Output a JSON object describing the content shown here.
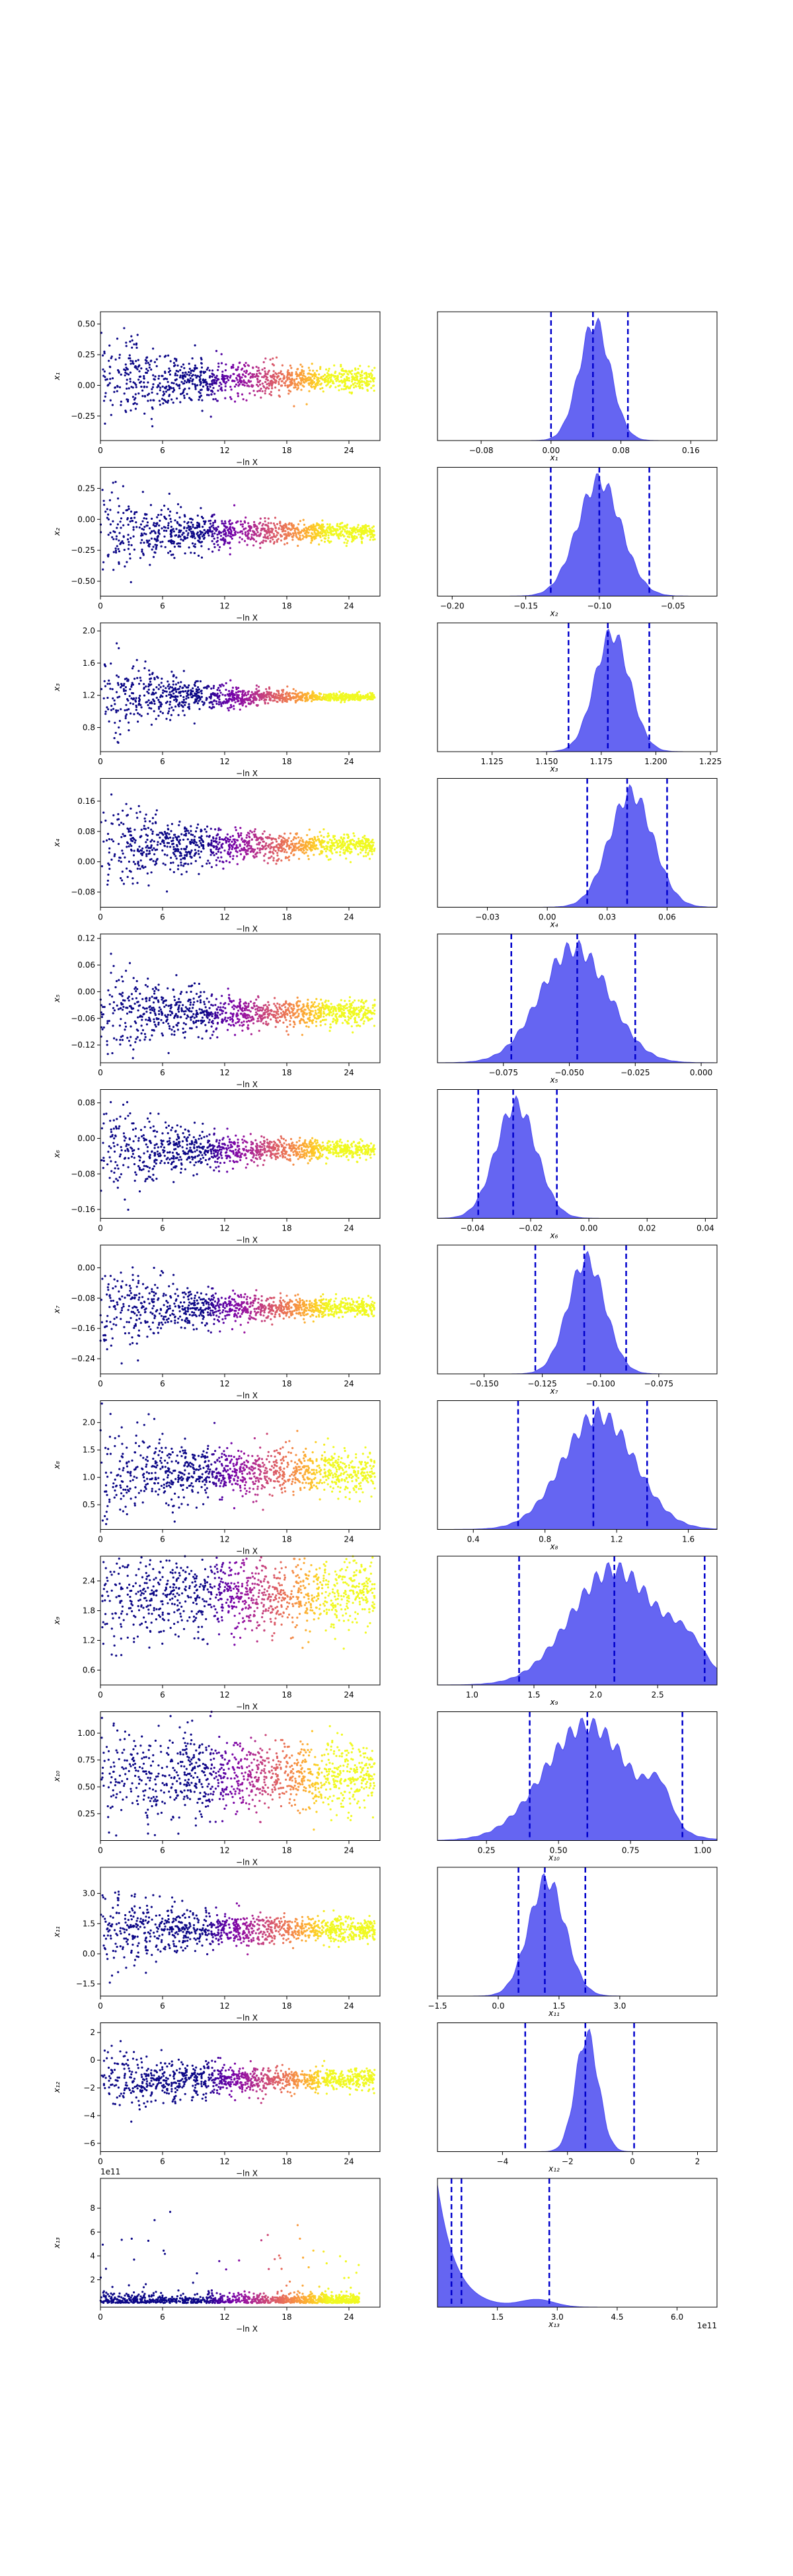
{
  "chart_data": {
    "type": "scatter",
    "figure": "dynesty trace plot: samples vs -ln X (left) and 1-D marginal posteriors (right)",
    "trace_xlabel": "−ln X",
    "trace_xticks": [
      "0",
      "6",
      "12",
      "18",
      "24"
    ],
    "trace_xlim": [
      0,
      27
    ],
    "colormap": "plasma",
    "colormap_stops": [
      "#0d0887",
      "#46039f",
      "#7201a8",
      "#9c179e",
      "#bd3786",
      "#d8576b",
      "#ed7953",
      "#fb9f3a",
      "#fdca26",
      "#f0f921"
    ],
    "hist_color": "#4a4af0",
    "quantile_line_color": "#0000cc",
    "offset_label": "1e11",
    "params": [
      {
        "name": "x1",
        "ylabel": "x₁",
        "xlabel": "x₁",
        "ylim": [
          -0.45,
          0.6
        ],
        "yticks": [
          -0.25,
          0.0,
          0.25,
          0.5
        ],
        "ytick_labels": [
          "−0.25",
          "0.00",
          "0.25",
          "0.50"
        ],
        "hist_xlim": [
          -0.13,
          0.19
        ],
        "hist_xticks": [
          -0.08,
          0.0,
          0.08,
          0.16
        ],
        "hist_xtick_labels": [
          "−0.08",
          "0.00",
          "0.08",
          "0.16"
        ],
        "mean": 0.05,
        "sd": 0.018,
        "q": [
          0.0,
          0.048,
          0.088
        ],
        "funnel_start": 0.22,
        "funnel_end": 0.04
      },
      {
        "name": "x2",
        "ylabel": "x₂",
        "xlabel": "x₂",
        "ylim": [
          -0.62,
          0.42
        ],
        "yticks": [
          -0.5,
          -0.25,
          0.0,
          0.25
        ],
        "ytick_labels": [
          "−0.50",
          "−0.25",
          "0.00",
          "0.25"
        ],
        "hist_xlim": [
          -0.21,
          -0.02
        ],
        "hist_xticks": [
          -0.2,
          -0.15,
          -0.1,
          -0.05
        ],
        "hist_xtick_labels": [
          "−0.20",
          "−0.15",
          "−0.10",
          "−0.05"
        ],
        "mean": -0.1,
        "sd": 0.015,
        "q": [
          -0.133,
          -0.1,
          -0.066
        ],
        "funnel_start": 0.2,
        "funnel_end": 0.03
      },
      {
        "name": "x3",
        "ylabel": "x₃",
        "xlabel": "x₃",
        "ylim": [
          0.5,
          2.1
        ],
        "yticks": [
          0.8,
          1.2,
          1.6,
          2.0
        ],
        "ytick_labels": [
          "0.8",
          "1.2",
          "1.6",
          "2.0"
        ],
        "hist_xlim": [
          1.1,
          1.228
        ],
        "hist_xticks": [
          1.125,
          1.15,
          1.175,
          1.2,
          1.225
        ],
        "hist_xtick_labels": [
          "1.125",
          "1.150",
          "1.175",
          "1.200",
          "1.225"
        ],
        "mean": 1.18,
        "sd": 0.008,
        "q": [
          1.16,
          1.178,
          1.197
        ],
        "funnel_start": 0.35,
        "funnel_end": 0.01
      },
      {
        "name": "x4",
        "ylabel": "x₄",
        "xlabel": "x₄",
        "ylim": [
          -0.12,
          0.22
        ],
        "yticks": [
          -0.08,
          0.0,
          0.08,
          0.16
        ],
        "ytick_labels": [
          "−0.08",
          "0.00",
          "0.08",
          "0.16"
        ],
        "hist_xlim": [
          -0.055,
          0.085
        ],
        "hist_xticks": [
          -0.03,
          0.0,
          0.03,
          0.06
        ],
        "hist_xtick_labels": [
          "−0.03",
          "0.00",
          "0.03",
          "0.06"
        ],
        "mean": 0.042,
        "sd": 0.011,
        "q": [
          0.02,
          0.04,
          0.06
        ],
        "funnel_start": 0.07,
        "funnel_end": 0.012
      },
      {
        "name": "x5",
        "ylabel": "x₅",
        "xlabel": "x₅",
        "ylim": [
          -0.16,
          0.13
        ],
        "yticks": [
          -0.12,
          -0.06,
          0.0,
          0.06,
          0.12
        ],
        "ytick_labels": [
          "−0.12",
          "−0.06",
          "0.00",
          "0.06",
          "0.12"
        ],
        "hist_xlim": [
          -0.1,
          0.006
        ],
        "hist_xticks": [
          -0.075,
          -0.05,
          -0.025,
          0.0
        ],
        "hist_xtick_labels": [
          "−0.075",
          "−0.050",
          "−0.025",
          "0.000"
        ],
        "mean": -0.048,
        "sd": 0.013,
        "q": [
          -0.072,
          -0.047,
          -0.025
        ],
        "funnel_start": 0.06,
        "funnel_end": 0.012
      },
      {
        "name": "x6",
        "ylabel": "x₆",
        "xlabel": "x₆",
        "ylim": [
          -0.18,
          0.11
        ],
        "yticks": [
          -0.16,
          -0.08,
          0.0,
          0.08
        ],
        "ytick_labels": [
          "−0.16",
          "−0.08",
          "0.00",
          "0.08"
        ],
        "hist_xlim": [
          -0.052,
          0.044
        ],
        "hist_xticks": [
          -0.04,
          -0.02,
          0.0,
          0.02,
          0.04
        ],
        "hist_xtick_labels": [
          "−0.04",
          "−0.02",
          "0.00",
          "0.02",
          "0.04"
        ],
        "mean": -0.025,
        "sd": 0.007,
        "q": [
          -0.038,
          -0.026,
          -0.011
        ],
        "funnel_start": 0.06,
        "funnel_end": 0.008
      },
      {
        "name": "x7",
        "ylabel": "x₇",
        "xlabel": "x₇",
        "ylim": [
          -0.28,
          0.06
        ],
        "yticks": [
          -0.24,
          -0.16,
          -0.08,
          0.0
        ],
        "ytick_labels": [
          "−0.24",
          "−0.16",
          "−0.08",
          "0.00"
        ],
        "hist_xlim": [
          -0.17,
          -0.05
        ],
        "hist_xticks": [
          -0.15,
          -0.125,
          -0.1,
          -0.075
        ],
        "hist_xtick_labels": [
          "−0.150",
          "−0.125",
          "−0.100",
          "−0.075"
        ],
        "mean": -0.106,
        "sd": 0.008,
        "q": [
          -0.128,
          -0.107,
          -0.089
        ],
        "funnel_start": 0.07,
        "funnel_end": 0.01
      },
      {
        "name": "x8",
        "ylabel": "x₈",
        "xlabel": "x₈",
        "ylim": [
          0.05,
          2.4
        ],
        "yticks": [
          0.5,
          1.0,
          1.5,
          2.0
        ],
        "ytick_labels": [
          "0.5",
          "1.0",
          "1.5",
          "2.0"
        ],
        "hist_xlim": [
          0.2,
          1.76
        ],
        "hist_xticks": [
          0.4,
          0.8,
          1.2,
          1.6
        ],
        "hist_xtick_labels": [
          "0.4",
          "0.8",
          "1.2",
          "1.6"
        ],
        "mean": 1.1,
        "sd": 0.2,
        "q": [
          0.65,
          1.07,
          1.37
        ],
        "funnel_start": 0.45,
        "funnel_end": 0.18
      },
      {
        "name": "x9",
        "ylabel": "x₉",
        "xlabel": "x₉",
        "ylim": [
          0.3,
          2.9
        ],
        "yticks": [
          0.6,
          1.2,
          1.8,
          2.4
        ],
        "ytick_labels": [
          "0.6",
          "1.2",
          "1.8",
          "2.4"
        ],
        "hist_xlim": [
          0.72,
          2.98
        ],
        "hist_xticks": [
          1.0,
          1.5,
          2.0,
          2.5
        ],
        "hist_xtick_labels": [
          "1.0",
          "1.5",
          "2.0",
          "2.5"
        ],
        "mean": 2.15,
        "sd": 0.35,
        "q": [
          1.38,
          2.15,
          2.88
        ],
        "funnel_start": 0.6,
        "funnel_end": 0.35
      },
      {
        "name": "x10",
        "ylabel": "x₁₀",
        "xlabel": "x₁₀",
        "ylim": [
          0.0,
          1.2
        ],
        "yticks": [
          0.25,
          0.5,
          0.75,
          1.0
        ],
        "ytick_labels": [
          "0.25",
          "0.50",
          "0.75",
          "1.00"
        ],
        "hist_xlim": [
          0.08,
          1.05
        ],
        "hist_xticks": [
          0.25,
          0.5,
          0.75,
          1.0
        ],
        "hist_xtick_labels": [
          "0.25",
          "0.50",
          "0.75",
          "1.00"
        ],
        "mean": 0.6,
        "sd": 0.15,
        "q": [
          0.4,
          0.6,
          0.93
        ],
        "funnel_start": 0.28,
        "funnel_end": 0.16
      },
      {
        "name": "x11",
        "ylabel": "x₁₁",
        "xlabel": "x₁₁",
        "ylim": [
          -2.1,
          4.3
        ],
        "yticks": [
          -1.5,
          0.0,
          1.5,
          3.0
        ],
        "ytick_labels": [
          "−1.5",
          "0.0",
          "1.5",
          "3.0"
        ],
        "hist_xlim": [
          -1.5,
          5.4
        ],
        "hist_xticks": [
          -1.5,
          0.0,
          1.5,
          3.0
        ],
        "hist_xtick_labels": [
          "−1.5",
          "0.0",
          "1.5",
          "3.0"
        ],
        "mean": 1.2,
        "sd": 0.45,
        "q": [
          0.5,
          1.15,
          2.15
        ],
        "funnel_start": 1.3,
        "funnel_end": 0.25
      },
      {
        "name": "x12",
        "ylabel": "x₁₂",
        "xlabel": "x₁₂",
        "ylim": [
          -6.6,
          2.7
        ],
        "yticks": [
          -6,
          -4,
          -2,
          0,
          2
        ],
        "ytick_labels": [
          "−6",
          "−4",
          "−2",
          "0",
          "2"
        ],
        "hist_xlim": [
          -6.0,
          2.6
        ],
        "hist_xticks": [
          -4,
          -2,
          0,
          2
        ],
        "hist_xtick_labels": [
          "−4",
          "−2",
          "0",
          "2"
        ],
        "mean": -1.4,
        "sd": 0.35,
        "q": [
          -3.3,
          -1.45,
          0.05
        ],
        "funnel_start": 1.3,
        "funnel_end": 0.35
      },
      {
        "name": "x13",
        "ylabel": "x₁₃",
        "xlabel": "x₁₃",
        "ylim": [
          -0.3,
          10.5
        ],
        "yticks": [
          2,
          4,
          6,
          8
        ],
        "ytick_labels": [
          "2",
          "4",
          "6",
          "8"
        ],
        "hist_xlim": [
          0.0,
          7.0
        ],
        "hist_xticks": [
          1.5,
          3.0,
          4.5,
          6.0
        ],
        "hist_xtick_labels": [
          "1.5",
          "3.0",
          "4.5",
          "6.0"
        ],
        "mean": 0.3,
        "sd": 0.3,
        "q": [
          0.35,
          0.6,
          2.8
        ],
        "funnel_start": 0.5,
        "funnel_end": 0.5
      }
    ]
  }
}
